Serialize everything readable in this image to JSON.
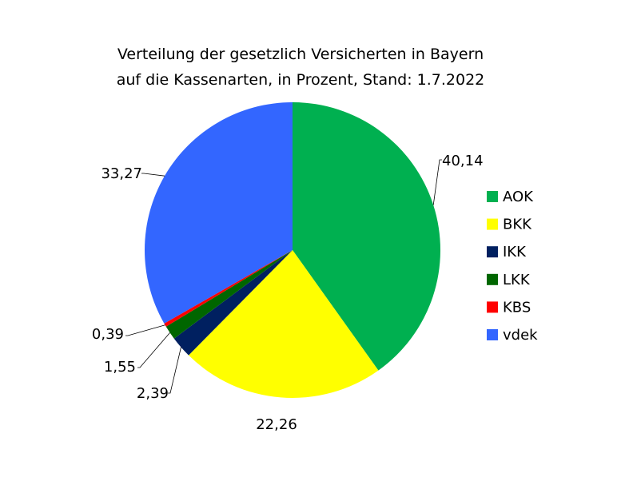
{
  "chart_data": {
    "type": "pie",
    "title_lines": [
      "Verteilung der gesetzlich Versicherten in Bayern",
      "auf die Kassenarten, in Prozent, Stand: 1.7.2022"
    ],
    "slices": [
      {
        "name": "AOK",
        "value": 40.14,
        "label": "40,14",
        "color": "#00b050"
      },
      {
        "name": "BKK",
        "value": 22.26,
        "label": "22,26",
        "color": "#ffff00"
      },
      {
        "name": "IKK",
        "value": 2.39,
        "label": "2,39",
        "color": "#002060"
      },
      {
        "name": "LKK",
        "value": 1.55,
        "label": "1,55",
        "color": "#006600"
      },
      {
        "name": "KBS",
        "value": 0.39,
        "label": "0,39",
        "color": "#ff0000"
      },
      {
        "name": "vdek",
        "value": 33.27,
        "label": "33,27",
        "color": "#3366ff"
      }
    ],
    "legend_position": "right"
  }
}
